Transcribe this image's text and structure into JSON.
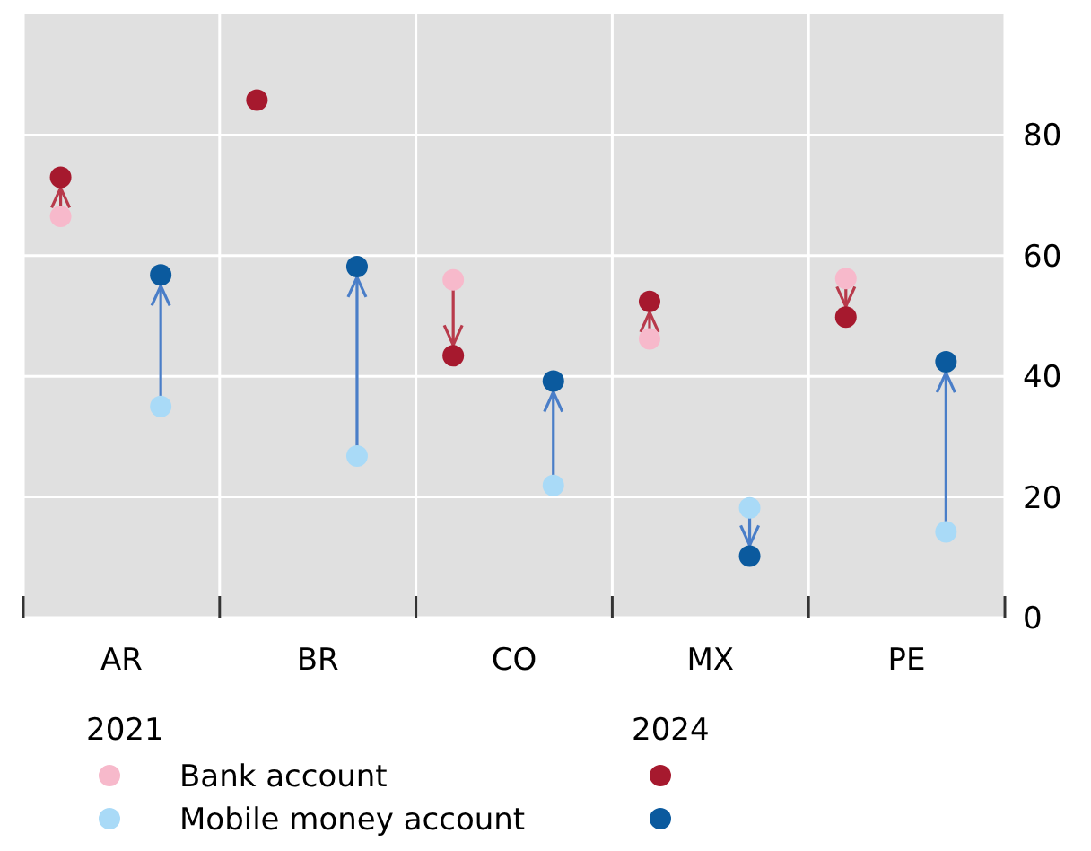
{
  "chart_data": {
    "type": "scatter",
    "categories": [
      "AR",
      "BR",
      "CO",
      "MX",
      "PE"
    ],
    "ylim": [
      0,
      100
    ],
    "yticks": [
      0,
      20,
      40,
      60,
      80
    ],
    "grid": true,
    "legend": "bottom",
    "marker": "circle",
    "annotations": [
      "2021",
      "2024"
    ],
    "series": [
      {
        "name": "Bank account",
        "color": "#f7b9cb",
        "values": [
          66.5,
          null,
          56,
          46.2,
          56.2
        ]
      },
      {
        "name": "Mobile money account",
        "color": "#a9daf7",
        "values": [
          35,
          26.8,
          21.9,
          18.2,
          14.2
        ]
      },
      {
        "color": "#a6192e",
        "values": [
          73,
          85.8,
          43.4,
          52.4,
          49.8
        ]
      },
      {
        "color": "#0b5a9e",
        "values": [
          56.8,
          58.2,
          39.2,
          10.2,
          42.4
        ]
      }
    ]
  }
}
